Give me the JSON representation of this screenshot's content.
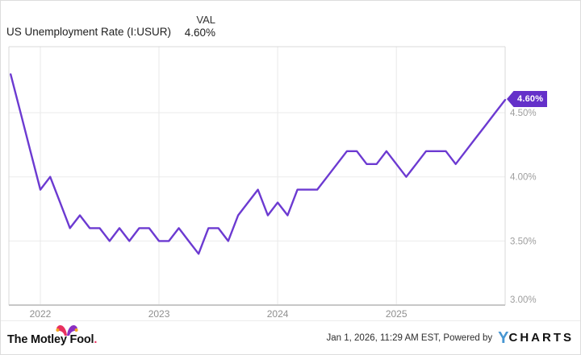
{
  "header": {
    "title": "US Unemployment Rate (I:USUR)",
    "val_label": "VAL",
    "val_value": "4.60%"
  },
  "chart_data": {
    "type": "line",
    "title": "US Unemployment Rate (I:USUR)",
    "series_name": "US Unemployment Rate",
    "unit": "%",
    "months": [
      "2021-10",
      "2021-11",
      "2021-12",
      "2022-01",
      "2022-02",
      "2022-03",
      "2022-04",
      "2022-05",
      "2022-06",
      "2022-07",
      "2022-08",
      "2022-09",
      "2022-10",
      "2022-11",
      "2022-12",
      "2023-01",
      "2023-02",
      "2023-03",
      "2023-04",
      "2023-05",
      "2023-06",
      "2023-07",
      "2023-08",
      "2023-09",
      "2023-10",
      "2023-11",
      "2023-12",
      "2024-01",
      "2024-02",
      "2024-03",
      "2024-04",
      "2024-05",
      "2024-06",
      "2024-07",
      "2024-08",
      "2024-09",
      "2024-10",
      "2024-11",
      "2024-12",
      "2025-01",
      "2025-02",
      "2025-03",
      "2025-04",
      "2025-05",
      "2025-06",
      "2025-07",
      "2025-08",
      "2025-09",
      "2025-10",
      "2025-11",
      "2025-12"
    ],
    "values": [
      4.8,
      4.5,
      4.2,
      3.9,
      4.0,
      3.8,
      3.6,
      3.7,
      3.6,
      3.6,
      3.5,
      3.6,
      3.5,
      3.6,
      3.6,
      3.5,
      3.5,
      3.6,
      3.5,
      3.4,
      3.6,
      3.6,
      3.5,
      3.7,
      3.8,
      3.9,
      3.7,
      3.8,
      3.7,
      3.9,
      3.9,
      3.9,
      4.0,
      4.1,
      4.2,
      4.2,
      4.1,
      4.1,
      4.2,
      4.1,
      4.0,
      4.1,
      4.2,
      4.2,
      4.2,
      4.1,
      4.2,
      4.3,
      4.4,
      4.5,
      4.6
    ],
    "y_ticks": [
      "4.50%",
      "4.00%",
      "3.50%",
      "3.00%"
    ],
    "x_ticks": [
      "2022",
      "2023",
      "2024",
      "2025"
    ],
    "y_axis_range": [
      3.0,
      5.0
    ],
    "grid": true,
    "legend_position": "none",
    "last_value_label": "4.60%"
  },
  "colors": {
    "line_purple": "#6C3AD1",
    "tag_purple": "#6430C9",
    "ycharts_blue": "#4796D2",
    "fool_pink": "#E8315F",
    "fool_purple": "#8B2FC1",
    "fool_gold": "#F5A623"
  },
  "footer": {
    "brand": "The Motley Fool",
    "brand_dot": ".",
    "timestamp": "Jan 1, 2026, 11:29 AM EST",
    "powered_by": "Powered by",
    "ycharts_logo_y": "Y",
    "ycharts_logo_rest": "CHARTS"
  }
}
